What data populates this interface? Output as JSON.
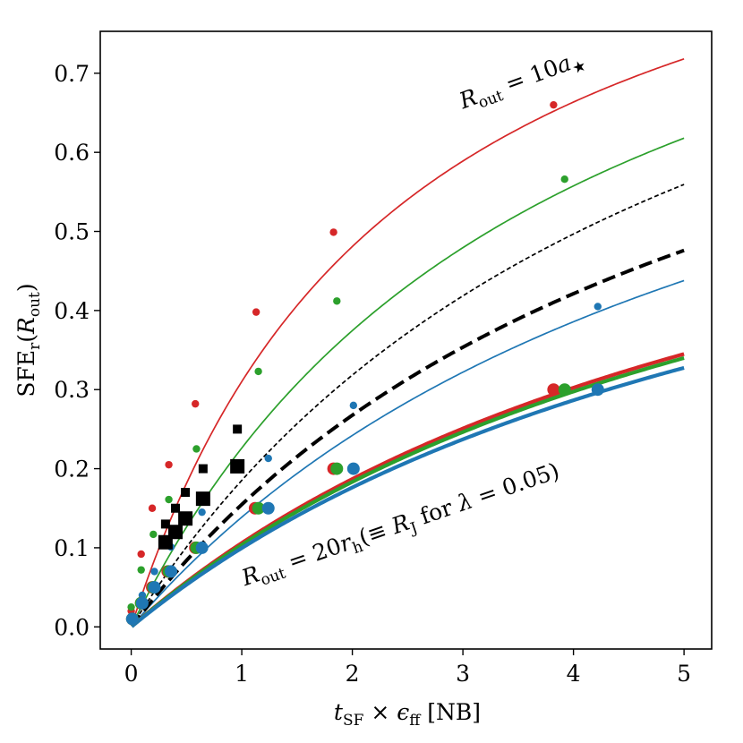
{
  "chart_data": {
    "type": "line",
    "title": "",
    "xlabel": "t_SF × ε_ff [NB]",
    "ylabel": "SFE_r(R_out)",
    "xlim": [
      -0.28,
      5.25
    ],
    "ylim": [
      -0.028,
      0.753
    ],
    "xticks": [
      "0",
      "1",
      "2",
      "3",
      "4",
      "5"
    ],
    "yticks": [
      "0.0",
      "0.1",
      "0.2",
      "0.3",
      "0.4",
      "0.5",
      "0.6",
      "0.7"
    ],
    "grid": false,
    "colors": {
      "red": "#d62728",
      "green": "#2ca02c",
      "blue": "#1f77b4",
      "black": "#000000"
    },
    "series": [
      {
        "name": "R_out = 10a* (red)",
        "color": "#d62728",
        "style": "solid",
        "width": "thin",
        "A": 1.07,
        "B": 2.45,
        "points": [
          [
            0.0,
            0.02
          ],
          [
            0.09,
            0.092
          ],
          [
            0.19,
            0.15
          ],
          [
            0.34,
            0.205
          ],
          [
            0.58,
            0.282
          ],
          [
            1.13,
            0.398
          ],
          [
            1.83,
            0.499
          ],
          [
            3.82,
            0.66
          ]
        ]
      },
      {
        "name": "R_out = 10a* (green)",
        "color": "#2ca02c",
        "style": "solid",
        "width": "thin",
        "A": 1.09,
        "B": 3.82,
        "points": [
          [
            0.0,
            0.025
          ],
          [
            0.09,
            0.072
          ],
          [
            0.2,
            0.117
          ],
          [
            0.34,
            0.161
          ],
          [
            0.59,
            0.225
          ],
          [
            1.15,
            0.323
          ],
          [
            1.86,
            0.412
          ],
          [
            3.92,
            0.566
          ]
        ]
      },
      {
        "name": "R_out = 10a* (black dotted)",
        "color": "#000000",
        "style": "dotted",
        "width": "thin",
        "A": 1.13,
        "B": 5.1,
        "points": []
      },
      {
        "name": "R_out = 10a* (blue)",
        "color": "#1f77b4",
        "style": "solid",
        "width": "thin",
        "A": 0.95,
        "B": 5.85,
        "points": [
          [
            0.1,
            0.04
          ],
          [
            0.21,
            0.07
          ],
          [
            0.36,
            0.101
          ],
          [
            0.64,
            0.145
          ],
          [
            1.24,
            0.213
          ],
          [
            2.01,
            0.28
          ],
          [
            4.22,
            0.405
          ]
        ]
      },
      {
        "name": "R_out = 10a* (black dashed)",
        "color": "#000000",
        "style": "dashed",
        "width": "thick",
        "A": 0.99,
        "B": 5.4,
        "points": []
      },
      {
        "name": "R_out = 20r_h (red)",
        "color": "#d62728",
        "style": "solid",
        "width": "thick",
        "A": 0.79,
        "B": 6.45,
        "points": [
          [
            0.01,
            0.01
          ],
          [
            0.09,
            0.03
          ],
          [
            0.19,
            0.05
          ],
          [
            0.33,
            0.07
          ],
          [
            0.58,
            0.1
          ],
          [
            1.12,
            0.15
          ],
          [
            1.83,
            0.2
          ],
          [
            3.82,
            0.3
          ]
        ]
      },
      {
        "name": "R_out = 20r_h (green)",
        "color": "#2ca02c",
        "style": "solid",
        "width": "thick",
        "A": 0.79,
        "B": 6.62,
        "points": [
          [
            0.01,
            0.01
          ],
          [
            0.09,
            0.03
          ],
          [
            0.2,
            0.05
          ],
          [
            0.34,
            0.07
          ],
          [
            0.59,
            0.1
          ],
          [
            1.15,
            0.15
          ],
          [
            1.86,
            0.2
          ],
          [
            3.92,
            0.3
          ]
        ]
      },
      {
        "name": "R_out = 20r_h (blue)",
        "color": "#1f77b4",
        "style": "solid",
        "width": "thick",
        "A": 0.765,
        "B": 6.68,
        "points": [
          [
            0.01,
            0.01
          ],
          [
            0.1,
            0.03
          ],
          [
            0.21,
            0.05
          ],
          [
            0.36,
            0.07
          ],
          [
            0.64,
            0.1
          ],
          [
            1.24,
            0.15
          ],
          [
            2.01,
            0.2
          ],
          [
            4.22,
            0.3
          ]
        ]
      }
    ],
    "markers": [
      {
        "name": "black squares small",
        "color": "#000000",
        "shape": "square",
        "size": "small",
        "points": [
          [
            0.31,
            0.13
          ],
          [
            0.4,
            0.15
          ],
          [
            0.49,
            0.17
          ],
          [
            0.65,
            0.2
          ],
          [
            0.96,
            0.25
          ]
        ]
      },
      {
        "name": "black squares large",
        "color": "#000000",
        "shape": "square",
        "size": "large",
        "points": [
          [
            0.31,
            0.107
          ],
          [
            0.4,
            0.12
          ],
          [
            0.49,
            0.137
          ],
          [
            0.65,
            0.162
          ],
          [
            0.96,
            0.203
          ]
        ]
      }
    ],
    "annotations": [
      {
        "id": "top",
        "text": "R_out = 10a★",
        "x": 3.0,
        "y": 0.655,
        "rotation": -20
      },
      {
        "id": "bottom",
        "text": "R_out = 20r_h(≡ R_J for λ = 0.05)",
        "x": 1.03,
        "y": 0.052,
        "rotation": -19
      }
    ]
  }
}
